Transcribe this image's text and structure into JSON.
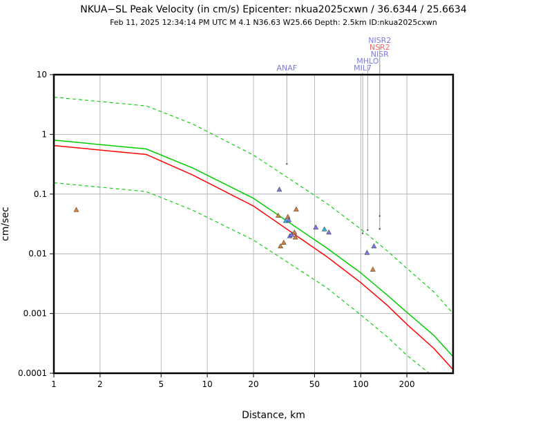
{
  "chart_data": {
    "type": "scatter",
    "title": "NKUA−SL Peak Velocity (in cm/s) Epicenter: nkua2025cxwn / 36.6344 / 25.6634",
    "subtitle": "Feb 11, 2025 12:34:14 PM UTC    M 4.1    N36.63 W25.66   Depth: 2.5km    ID:nkua2025cxwn",
    "xlabel": "Distance, km",
    "ylabel": "cm/sec",
    "x_scale": "log",
    "y_scale": "log",
    "xlim": [
      1,
      400
    ],
    "ylim": [
      0.0001,
      10
    ],
    "grid": true,
    "x_ticks": [
      1,
      2,
      5,
      10,
      20,
      50,
      100,
      200
    ],
    "x_tick_labels": [
      "1",
      "2",
      "5",
      "10",
      "20",
      "50",
      "100",
      "200"
    ],
    "y_ticks": [
      0.0001,
      0.001,
      0.01,
      0.1,
      1,
      10
    ],
    "y_tick_labels": [
      "0.0001",
      "0.001",
      "0.01",
      "0.1",
      "1",
      "10"
    ],
    "curves": [
      {
        "role": "median-red",
        "color": "#ff0000",
        "dashed": false,
        "points": [
          [
            1,
            0.65
          ],
          [
            4,
            0.46
          ],
          [
            8,
            0.21
          ],
          [
            20,
            0.063
          ],
          [
            60,
            0.009
          ],
          [
            100,
            0.0033
          ],
          [
            150,
            0.00135
          ],
          [
            200,
            0.00066
          ],
          [
            300,
            0.00026
          ],
          [
            400,
            0.000115
          ]
        ]
      },
      {
        "role": "median-green",
        "color": "#00cc00",
        "dashed": false,
        "points": [
          [
            1,
            0.8
          ],
          [
            4,
            0.57
          ],
          [
            8,
            0.275
          ],
          [
            20,
            0.085
          ],
          [
            60,
            0.0125
          ],
          [
            100,
            0.0048
          ],
          [
            150,
            0.002
          ],
          [
            200,
            0.00105
          ],
          [
            300,
            0.00043
          ],
          [
            400,
            0.00019
          ]
        ]
      },
      {
        "role": "upper-green",
        "color": "#00cc00",
        "dashed": true,
        "points": [
          [
            1,
            4.2
          ],
          [
            4,
            3.0
          ],
          [
            8,
            1.5
          ],
          [
            20,
            0.45
          ],
          [
            60,
            0.07
          ],
          [
            100,
            0.026
          ],
          [
            150,
            0.011
          ],
          [
            200,
            0.0057
          ],
          [
            300,
            0.0023
          ],
          [
            400,
            0.001
          ]
        ]
      },
      {
        "role": "lower-green",
        "color": "#00cc00",
        "dashed": true,
        "points": [
          [
            1,
            0.155
          ],
          [
            4,
            0.11
          ],
          [
            8,
            0.054
          ],
          [
            20,
            0.017
          ],
          [
            60,
            0.0027
          ],
          [
            100,
            0.00095
          ],
          [
            150,
            0.0004
          ],
          [
            200,
            0.0002
          ],
          [
            280,
            0.0001
          ]
        ]
      }
    ],
    "points": [
      {
        "x": 1.4,
        "y": 0.055,
        "color": "#d4803c"
      },
      {
        "x": 29,
        "y": 0.044,
        "color": "#d4803c"
      },
      {
        "x": 29.5,
        "y": 0.12,
        "color": "#7a7ae6"
      },
      {
        "x": 30,
        "y": 0.0135,
        "color": "#d4803c"
      },
      {
        "x": 31.5,
        "y": 0.0155,
        "color": "#d4803c"
      },
      {
        "x": 32.5,
        "y": 0.036,
        "color": "#33b0d9"
      },
      {
        "x": 33.5,
        "y": 0.042,
        "color": "#d4803c"
      },
      {
        "x": 34,
        "y": 0.037,
        "color": "#7a7ae6"
      },
      {
        "x": 34.5,
        "y": 0.02,
        "color": "#7a7ae6"
      },
      {
        "x": 35.5,
        "y": 0.021,
        "color": "#7a7ae6"
      },
      {
        "x": 37,
        "y": 0.023,
        "color": "#d4803c"
      },
      {
        "x": 37.5,
        "y": 0.019,
        "color": "#d4803c"
      },
      {
        "x": 38,
        "y": 0.056,
        "color": "#d4803c"
      },
      {
        "x": 51,
        "y": 0.028,
        "color": "#7a7ae6"
      },
      {
        "x": 58,
        "y": 0.026,
        "color": "#33b0d9"
      },
      {
        "x": 62,
        "y": 0.023,
        "color": "#7a7ae6"
      },
      {
        "x": 110,
        "y": 0.0105,
        "color": "#7a7ae6"
      },
      {
        "x": 120,
        "y": 0.0055,
        "color": "#d4803c"
      },
      {
        "x": 122,
        "y": 0.0135,
        "color": "#7a7ae6"
      }
    ],
    "station_labels": [
      {
        "name": "ANAF",
        "color": "#7a7ae6",
        "x": 33,
        "y": 0.32,
        "row": 0
      },
      {
        "name": "MIL7",
        "color": "#7a7ae6",
        "x": 103,
        "y": 0.022,
        "row": 0
      },
      {
        "name": "MHLO",
        "color": "#7a7ae6",
        "x": 111,
        "y": 0.025,
        "row": 1
      },
      {
        "name": "NISR",
        "color": "#7a7ae6",
        "x": 133,
        "y": 0.026,
        "row": 2
      },
      {
        "name": "NSR2",
        "color": "#f06a6a",
        "x": 133,
        "y": 0.026,
        "row": 3
      },
      {
        "name": "NISR2",
        "color": "#7a7ae6",
        "x": 133,
        "y": 0.043,
        "row": 4
      }
    ]
  }
}
